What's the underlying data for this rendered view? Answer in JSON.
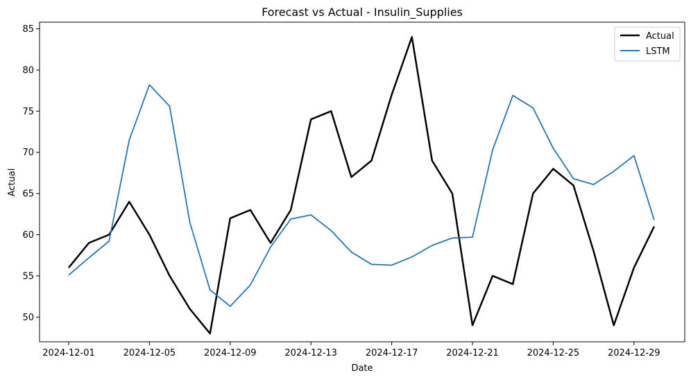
{
  "chart_data": {
    "type": "line",
    "title": "Forecast vs Actual - Insulin_Supplies",
    "xlabel": "Date",
    "ylabel": "Actual",
    "x": [
      "2024-12-01",
      "2024-12-02",
      "2024-12-03",
      "2024-12-04",
      "2024-12-05",
      "2024-12-06",
      "2024-12-07",
      "2024-12-08",
      "2024-12-09",
      "2024-12-10",
      "2024-12-11",
      "2024-12-12",
      "2024-12-13",
      "2024-12-14",
      "2024-12-15",
      "2024-12-16",
      "2024-12-17",
      "2024-12-18",
      "2024-12-19",
      "2024-12-20",
      "2024-12-21",
      "2024-12-22",
      "2024-12-23",
      "2024-12-24",
      "2024-12-25",
      "2024-12-26",
      "2024-12-27",
      "2024-12-28",
      "2024-12-29",
      "2024-12-30"
    ],
    "x_ticks": [
      "2024-12-01",
      "2024-12-05",
      "2024-12-09",
      "2024-12-13",
      "2024-12-17",
      "2024-12-21",
      "2024-12-25",
      "2024-12-29"
    ],
    "y_ticks": [
      50,
      55,
      60,
      65,
      70,
      75,
      80,
      85
    ],
    "ylim": [
      47.0,
      85.8
    ],
    "grid": false,
    "legend_position": "top-right",
    "series": [
      {
        "name": "Actual",
        "color": "#000000",
        "values": [
          56,
          59,
          60,
          64,
          60,
          55,
          51,
          48,
          62,
          63,
          59,
          63,
          74,
          75,
          67,
          69,
          77,
          84,
          69,
          65,
          49,
          55,
          54,
          65,
          68,
          66,
          58,
          49,
          56,
          61
        ]
      },
      {
        "name": "LSTM",
        "color": "#1f77b4",
        "values": [
          55.1,
          57.2,
          59.2,
          71.5,
          78.2,
          75.6,
          61.5,
          53.3,
          51.3,
          53.9,
          58.5,
          61.9,
          62.4,
          60.5,
          57.9,
          56.4,
          56.3,
          57.3,
          58.7,
          59.6,
          59.7,
          70.3,
          76.9,
          75.4,
          70.5,
          66.8,
          66.1,
          67.7,
          69.6,
          61.8
        ]
      }
    ]
  }
}
